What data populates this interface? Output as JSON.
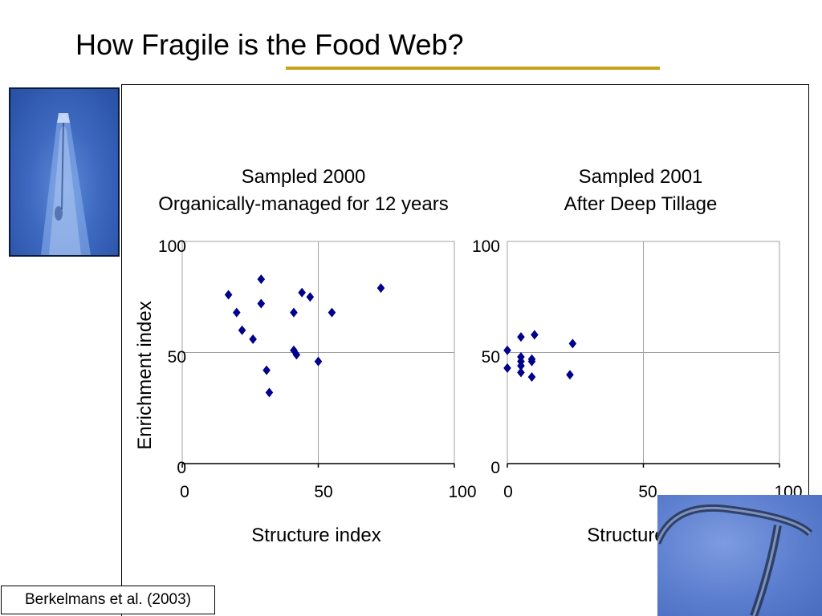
{
  "slide": {
    "title": "How Fragile is the Food Web?",
    "citation": "Berkelmans et al. (2003)",
    "underline_color": "#c9a11a"
  },
  "images": {
    "left": "nematode-head-micrograph",
    "right": "nematode-body-micrograph"
  },
  "chart_data": [
    {
      "type": "scatter",
      "title": [
        "Sampled 2000",
        "Organically-managed for 12 years"
      ],
      "xlabel": "Structure index",
      "ylabel": "Enrichment index",
      "xlim": [
        0,
        100
      ],
      "ylim": [
        0,
        100
      ],
      "xticks": [
        "0",
        "50",
        "100"
      ],
      "yticks": [
        "0",
        "50",
        "100"
      ],
      "grid": true,
      "marker": "diamond",
      "marker_color": "#00008b",
      "points": [
        {
          "x": 17,
          "y": 76
        },
        {
          "x": 20,
          "y": 68
        },
        {
          "x": 22,
          "y": 60
        },
        {
          "x": 26,
          "y": 56
        },
        {
          "x": 29,
          "y": 83
        },
        {
          "x": 29,
          "y": 72
        },
        {
          "x": 31,
          "y": 42
        },
        {
          "x": 32,
          "y": 32
        },
        {
          "x": 41,
          "y": 68
        },
        {
          "x": 41,
          "y": 51
        },
        {
          "x": 42,
          "y": 49
        },
        {
          "x": 44,
          "y": 77
        },
        {
          "x": 47,
          "y": 75
        },
        {
          "x": 50,
          "y": 46
        },
        {
          "x": 55,
          "y": 68
        },
        {
          "x": 73,
          "y": 79
        }
      ]
    },
    {
      "type": "scatter",
      "title": [
        "Sampled 2001",
        "After Deep Tillage"
      ],
      "xlabel": "Structure index",
      "ylabel": "",
      "xlim": [
        0,
        100
      ],
      "ylim": [
        0,
        100
      ],
      "xticks": [
        "0",
        "50",
        "100"
      ],
      "yticks": [
        "0",
        "50",
        "100"
      ],
      "grid": true,
      "marker": "diamond",
      "marker_color": "#00008b",
      "points": [
        {
          "x": 0,
          "y": 51
        },
        {
          "x": 0,
          "y": 43
        },
        {
          "x": 5,
          "y": 57
        },
        {
          "x": 5,
          "y": 48
        },
        {
          "x": 5,
          "y": 46
        },
        {
          "x": 5,
          "y": 44
        },
        {
          "x": 5,
          "y": 41
        },
        {
          "x": 9,
          "y": 47
        },
        {
          "x": 9,
          "y": 46
        },
        {
          "x": 9,
          "y": 39
        },
        {
          "x": 10,
          "y": 58
        },
        {
          "x": 24,
          "y": 54
        },
        {
          "x": 23,
          "y": 40
        }
      ]
    }
  ]
}
